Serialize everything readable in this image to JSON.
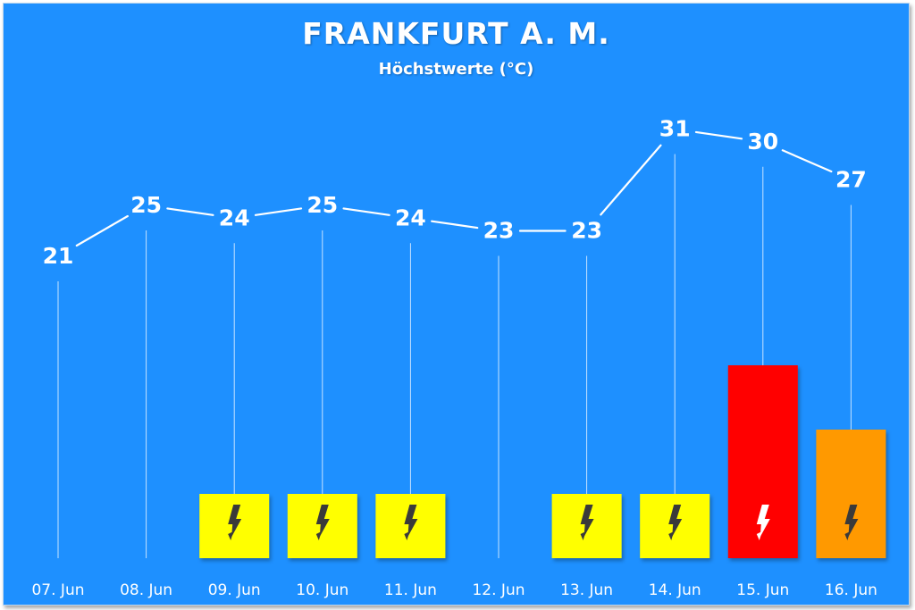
{
  "title": "FRANKFURT A. M.",
  "subtitle": "Höchstwerte (°C)",
  "chart_data": {
    "type": "line",
    "title": "FRANKFURT A. M.",
    "subtitle": "Höchstwerte (°C)",
    "categories": [
      "07. Jun",
      "08. Jun",
      "09. Jun",
      "10. Jun",
      "11. Jun",
      "12. Jun",
      "13. Jun",
      "14. Jun",
      "15. Jun",
      "16. Jun"
    ],
    "series": [
      {
        "values": [
          21,
          25,
          24,
          25,
          24,
          23,
          23,
          31,
          30,
          27
        ]
      }
    ],
    "thunderstorm_warning": [
      {
        "category": "07. Jun",
        "level": 0
      },
      {
        "category": "08. Jun",
        "level": 0
      },
      {
        "category": "09. Jun",
        "level": 1,
        "color": "#ffff00"
      },
      {
        "category": "10. Jun",
        "level": 1,
        "color": "#ffff00"
      },
      {
        "category": "11. Jun",
        "level": 1,
        "color": "#ffff00"
      },
      {
        "category": "12. Jun",
        "level": 0
      },
      {
        "category": "13. Jun",
        "level": 1,
        "color": "#ffff00"
      },
      {
        "category": "14. Jun",
        "level": 1,
        "color": "#ffff00"
      },
      {
        "category": "15. Jun",
        "level": 3,
        "color": "#ff0000"
      },
      {
        "category": "16. Jun",
        "level": 2,
        "color": "#ff9900"
      }
    ],
    "grid": false,
    "legend": "none",
    "icon": "lightning-bolt-icon"
  }
}
